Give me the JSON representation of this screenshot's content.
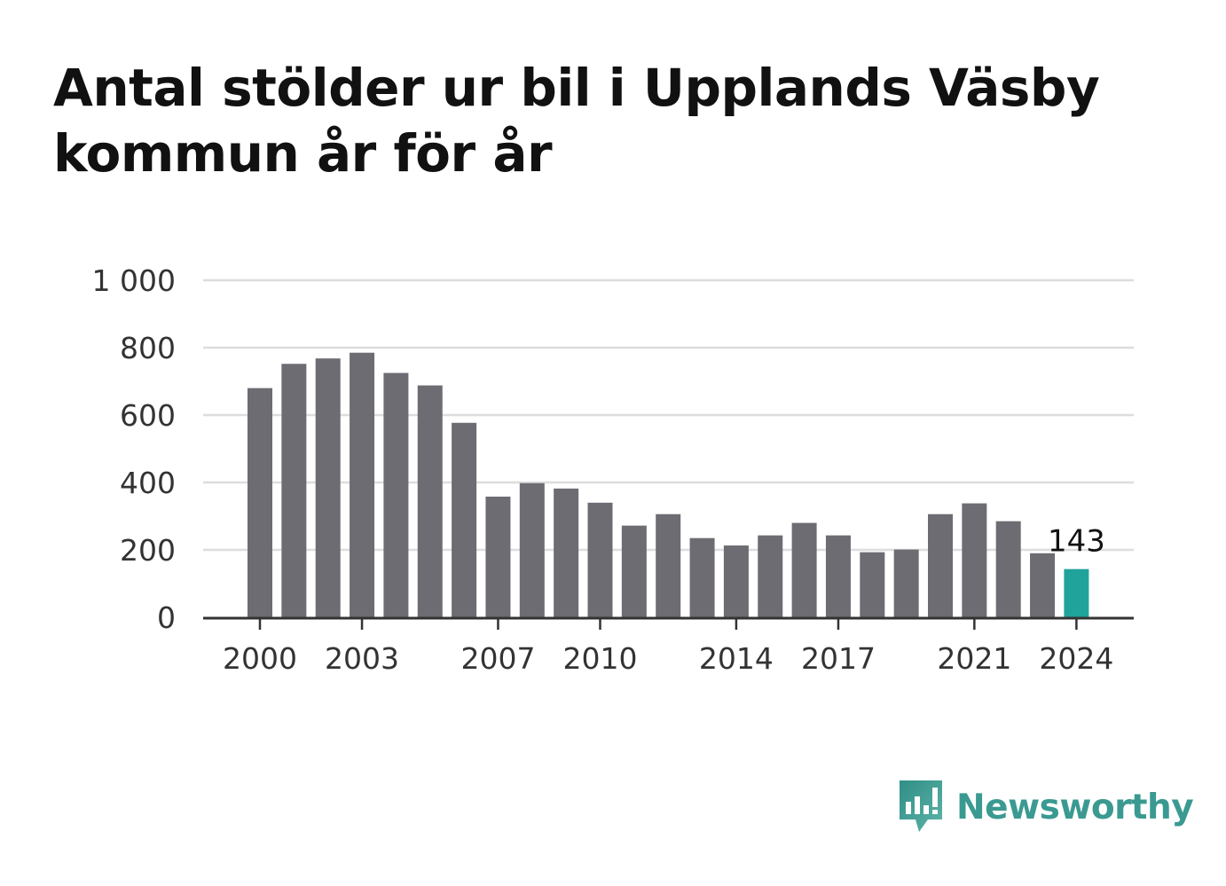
{
  "title": "Antal stölder ur bil i Upplands Väsby kommun år för år",
  "brand": {
    "name": "Newsworthy",
    "icon": "newsworthy-logo-icon",
    "color": "#3a9a91"
  },
  "colors": {
    "bar": "#6d6c73",
    "highlight": "#1fa39a",
    "grid": "#dddddd",
    "axis": "#333333"
  },
  "chart_data": {
    "type": "bar",
    "title": "Antal stölder ur bil i Upplands Väsby kommun år för år",
    "xlabel": "",
    "ylabel": "",
    "categories": [
      "2000",
      "2001",
      "2002",
      "2003",
      "2004",
      "2005",
      "2006",
      "2007",
      "2008",
      "2009",
      "2010",
      "2011",
      "2012",
      "2013",
      "2014",
      "2015",
      "2016",
      "2017",
      "2018",
      "2019",
      "2020",
      "2021",
      "2022",
      "2023",
      "2024"
    ],
    "values": [
      680,
      752,
      768,
      785,
      725,
      688,
      577,
      358,
      398,
      382,
      340,
      272,
      306,
      235,
      213,
      243,
      280,
      243,
      193,
      201,
      306,
      338,
      285,
      190,
      143
    ],
    "highlight_index": 24,
    "highlight_label": "143",
    "x_tick_labels": [
      "2000",
      "2003",
      "2007",
      "2010",
      "2014",
      "2017",
      "2021",
      "2024"
    ],
    "y_ticks": [
      0,
      200,
      400,
      600,
      800,
      1000
    ],
    "y_tick_labels": [
      "0",
      "200",
      "400",
      "600",
      "800",
      "1 000"
    ],
    "ylim": [
      0,
      1000
    ],
    "grid": true,
    "legend": "none"
  }
}
